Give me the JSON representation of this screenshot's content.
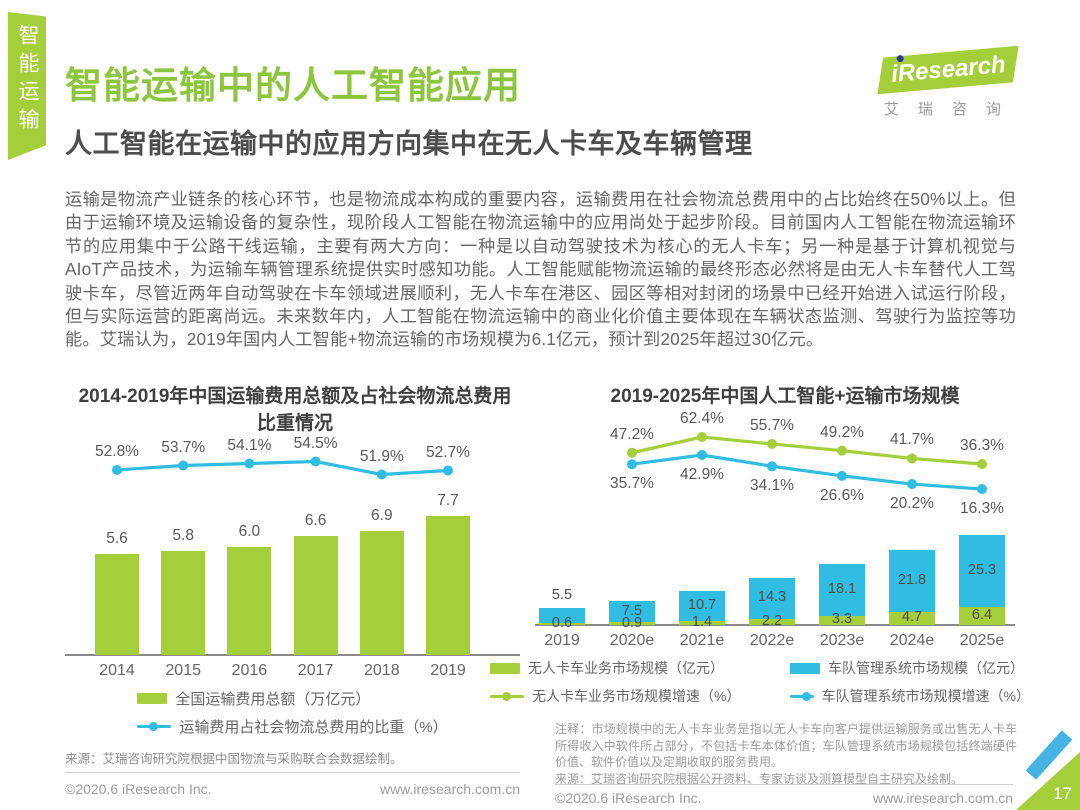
{
  "page": {
    "side_tab": "智能运输",
    "title": "智能运输中的人工智能应用",
    "subtitle": "人工智能在运输中的应用方向集中在无人卡车及车辆管理",
    "body": "运输是物流产业链条的核心环节，也是物流成本构成的重要内容，运输费用在社会物流总费用中的占比始终在50%以上。但由于运输环境及运输设备的复杂性，现阶段人工智能在物流运输中的应用尚处于起步阶段。目前国内人工智能在物流运输环节的应用集中于公路干线运输，主要有两大方向：一种是以自动驾驶技术为核心的无人卡车；另一种是基于计算机视觉与AIoT产品技术，为运输车辆管理系统提供实时感知功能。人工智能赋能物流运输的最终形态必然将是由无人卡车替代人工驾驶卡车，尽管近两年自动驾驶在卡车领域进展顺利，无人卡车在港区、园区等相对封闭的场景中已经开始进入试运行阶段，但与实际运营的距离尚远。未来数年内，人工智能在物流运输中的商业化价值主要体现在车辆状态监测、驾驶行为监控等功能。艾瑞认为，2019年国内人工智能+物流运输的市场规模为6.1亿元，预计到2025年超过30亿元。",
    "page_number": "17"
  },
  "logo": {
    "name": "iResearch",
    "caption": "艾瑞咨询"
  },
  "colors": {
    "green": "#a5ce3b",
    "title_green": "#8cc63f",
    "cyan": "#31bce2",
    "logo_dot_blue": "#2b3990",
    "corner_blue": "#45b4e3"
  },
  "chart_data": [
    {
      "type": "bar",
      "title": "2014-2019年中国运输费用总额及占社会物流总费用比重情况",
      "categories": [
        "2014",
        "2015",
        "2016",
        "2017",
        "2018",
        "2019"
      ],
      "series": [
        {
          "name": "全国运输费用总额（万亿元）",
          "type": "bar",
          "color": "#a5ce3b",
          "values": [
            5.6,
            5.8,
            6.0,
            6.6,
            6.9,
            7.7
          ]
        },
        {
          "name": "运输费用占社会物流总费用的比重（%）",
          "type": "line",
          "color": "#31bce2",
          "values": [
            52.8,
            53.7,
            54.1,
            54.5,
            51.9,
            52.7
          ]
        }
      ],
      "ylim": [
        0,
        10
      ],
      "grid": false,
      "legend_position": "bottom",
      "source": "来源：艾瑞咨询研究院根据中国物流与采购联合会数据绘制。"
    },
    {
      "type": "bar",
      "title": "2019-2025年中国人工智能+运输市场规模",
      "categories": [
        "2019",
        "2020e",
        "2021e",
        "2022e",
        "2023e",
        "2024e",
        "2025e"
      ],
      "series": [
        {
          "name": "无人卡车业务市场规模（亿元）",
          "type": "stacked-bar-bottom",
          "color": "#a5ce3b",
          "values": [
            0.6,
            0.9,
            1.4,
            2.2,
            3.3,
            4.7,
            6.4
          ]
        },
        {
          "name": "车队管理系统市场规模（亿元）",
          "type": "stacked-bar-top",
          "color": "#31bce2",
          "values": [
            5.5,
            7.5,
            10.7,
            14.3,
            18.1,
            21.8,
            25.3
          ]
        },
        {
          "name": "无人卡车业务市场规模增速（%）",
          "type": "line",
          "color": "#a5ce3b",
          "values": [
            null,
            47.2,
            62.4,
            55.7,
            49.2,
            41.7,
            36.3
          ]
        },
        {
          "name": "车队管理系统市场规模增速（%）",
          "type": "line",
          "color": "#31bce2",
          "values": [
            null,
            35.7,
            42.9,
            34.1,
            26.6,
            20.2,
            16.3
          ]
        }
      ],
      "ylim": [
        0,
        35
      ],
      "grid": false,
      "legend_position": "bottom",
      "note": "注释：市场规模中的无人卡车业务是指以无人卡车向客户提供运输服务或出售无人卡车所得收入中软件所占部分，不包括卡车本体价值；车队管理系统市场规模包括终端硬件价值、软件价值以及定期收取的服务费用。",
      "source": "来源：艾瑞咨询研究院根据公开资料、专家访谈及测算模型自主研究及绘制。"
    }
  ],
  "footer": {
    "copyright": "©2020.6 iResearch Inc.",
    "url": "www.iresearch.com.cn"
  }
}
